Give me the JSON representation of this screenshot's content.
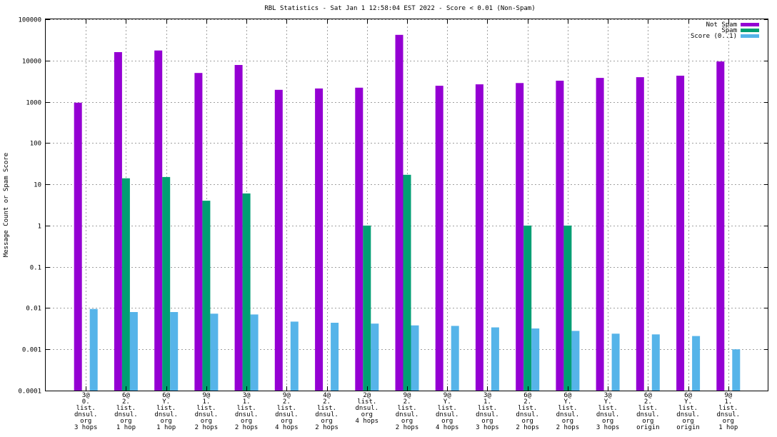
{
  "chart_data": {
    "type": "bar",
    "title": "RBL Statistics - Sat Jan  1 12:58:04 EST 2022 - Score < 0.01 (Non-Spam)",
    "xlabel": "",
    "ylabel": "Message Count or Spam Score",
    "yscale": "log",
    "ylim": [
      0.0001,
      100000
    ],
    "yticks": [
      {
        "value": 0.0001,
        "label": "0.0001"
      },
      {
        "value": 0.001,
        "label": "0.001"
      },
      {
        "value": 0.01,
        "label": "0.01"
      },
      {
        "value": 0.1,
        "label": "0.1"
      },
      {
        "value": 1,
        "label": "1"
      },
      {
        "value": 10,
        "label": "10"
      },
      {
        "value": 100,
        "label": "100"
      },
      {
        "value": 1000,
        "label": "1000"
      },
      {
        "value": 10000,
        "label": "10000"
      },
      {
        "value": 100000,
        "label": "100000"
      }
    ],
    "grid": true,
    "legend_position": "top-right",
    "categories": [
      [
        "3@",
        "0.",
        "list.",
        "dnsul.",
        "org",
        "3 hops"
      ],
      [
        "6@",
        "2.",
        "list.",
        "dnsul.",
        "org",
        "1 hop"
      ],
      [
        "6@",
        "Y.",
        "list.",
        "dnsul.",
        "org",
        "1 hop"
      ],
      [
        "9@",
        "1.",
        "list.",
        "dnsul.",
        "org",
        "2 hops"
      ],
      [
        "3@",
        "1.",
        "list.",
        "dnsul.",
        "org",
        "2 hops"
      ],
      [
        "9@",
        "2.",
        "list.",
        "dnsul.",
        "org",
        "4 hops"
      ],
      [
        "4@",
        "2.",
        "list.",
        "dnsul.",
        "org",
        "2 hops"
      ],
      [
        "2@",
        "list.",
        "dnsul.",
        "org",
        "4 hops"
      ],
      [
        "9@",
        "2.",
        "list.",
        "dnsul.",
        "org",
        "2 hops"
      ],
      [
        "9@",
        "Y.",
        "list.",
        "dnsul.",
        "org",
        "4 hops"
      ],
      [
        "3@",
        "1.",
        "list.",
        "dnsul.",
        "org",
        "3 hops"
      ],
      [
        "6@",
        "2.",
        "list.",
        "dnsul.",
        "org",
        "2 hops"
      ],
      [
        "6@",
        "Y.",
        "list.",
        "dnsul.",
        "org",
        "2 hops"
      ],
      [
        "3@",
        "Y.",
        "list.",
        "dnsul.",
        "org",
        "3 hops"
      ],
      [
        "6@",
        "2.",
        "list.",
        "dnsul.",
        "org",
        "origin"
      ],
      [
        "6@",
        "Y.",
        "list.",
        "dnsul.",
        "org",
        "origin"
      ],
      [
        "9@",
        "1.",
        "list.",
        "dnsul.",
        "org",
        "1 hop"
      ]
    ],
    "series": [
      {
        "name": "Not Spam",
        "color": "#9400d3",
        "values": [
          950,
          16000,
          17500,
          5000,
          7800,
          1950,
          2100,
          2200,
          42000,
          2450,
          2650,
          2850,
          3250,
          3800,
          3950,
          4300,
          9500
        ]
      },
      {
        "name": "Spam",
        "color": "#009e73",
        "values": [
          null,
          14,
          15,
          4,
          6,
          null,
          null,
          1,
          17,
          null,
          null,
          1,
          1,
          null,
          null,
          null,
          null
        ]
      },
      {
        "name": "Score (0..1)",
        "color": "#56b4e9",
        "values": [
          0.0095,
          0.008,
          0.008,
          0.0073,
          0.007,
          0.0047,
          0.0044,
          0.0042,
          0.0038,
          0.0037,
          0.0034,
          0.0032,
          0.0028,
          0.0024,
          0.0023,
          0.0021,
          0.001
        ]
      }
    ]
  }
}
